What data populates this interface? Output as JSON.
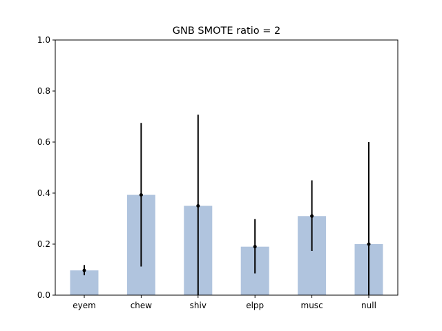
{
  "chart_data": {
    "type": "bar",
    "title": "GNB SMOTE ratio = 2",
    "xlabel": "",
    "ylabel": "",
    "categories": [
      "eyem",
      "chew",
      "shiv",
      "elpp",
      "musc",
      "null"
    ],
    "values": [
      0.097,
      0.393,
      0.35,
      0.19,
      0.31,
      0.2
    ],
    "error_low": [
      0.078,
      0.112,
      0.0,
      0.085,
      0.173,
      0.0
    ],
    "error_high": [
      0.118,
      0.675,
      0.707,
      0.298,
      0.45,
      0.6
    ],
    "ylim": [
      0,
      1.0
    ],
    "yticks": [
      "0.0",
      "0.2",
      "0.4",
      "0.6",
      "0.8",
      "1.0"
    ],
    "grid": false,
    "bar_color": "#b0c4de",
    "error_color": "#000000"
  }
}
